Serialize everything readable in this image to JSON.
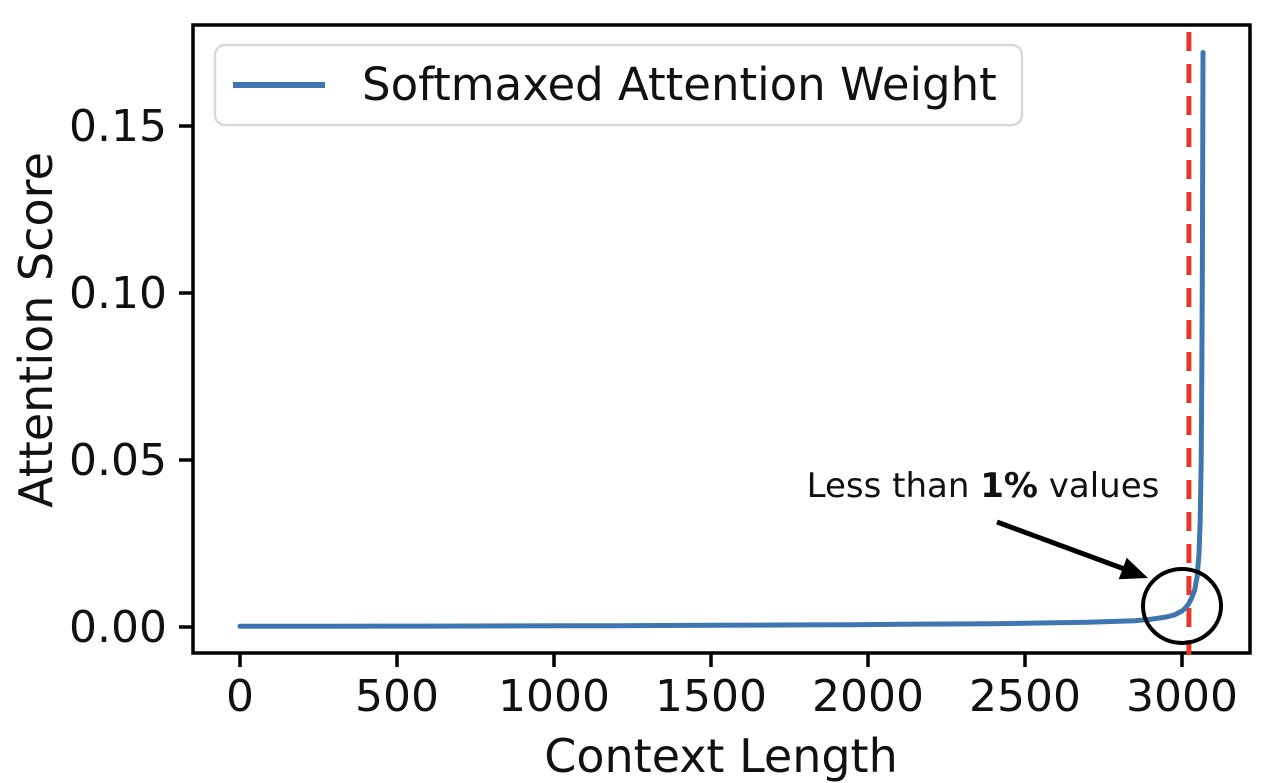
{
  "chart_data": {
    "type": "line",
    "title": "",
    "xlabel": "Context Length",
    "ylabel": "Attention Score",
    "grid": false,
    "xlim": [
      -150,
      3215
    ],
    "ylim": [
      -0.0085,
      0.1805
    ],
    "x_ticks": [
      0,
      500,
      1000,
      1500,
      2000,
      2500,
      3000
    ],
    "y_ticks": [
      {
        "value": 0.0,
        "label": "0.00"
      },
      {
        "value": 0.05,
        "label": "0.05"
      },
      {
        "value": 0.1,
        "label": "0.10"
      },
      {
        "value": 0.15,
        "label": "0.15"
      }
    ],
    "legend": {
      "position": "upper-left",
      "entries": [
        {
          "label": "Softmaxed Attention Weight",
          "color": "#3f76af"
        }
      ]
    },
    "series": [
      {
        "name": "Softmaxed Attention Weight",
        "color": "#3f76af",
        "x": [
          0,
          150,
          300,
          450,
          600,
          750,
          900,
          1050,
          1200,
          1350,
          1500,
          1650,
          1800,
          1950,
          2100,
          2250,
          2400,
          2550,
          2700,
          2800,
          2850,
          2900,
          2950,
          2975,
          3000,
          3010,
          3020,
          3030,
          3040,
          3048,
          3054,
          3058,
          3061,
          3063,
          3065,
          3066,
          3067
        ],
        "y": [
          0.0002,
          0.00022,
          0.00024,
          0.00026,
          0.00028,
          0.0003,
          0.00033,
          0.00036,
          0.0004,
          0.00045,
          0.0005,
          0.00056,
          0.00063,
          0.0007,
          0.0008,
          0.0009,
          0.001,
          0.0012,
          0.0014,
          0.0017,
          0.0019,
          0.0023,
          0.003,
          0.0036,
          0.0048,
          0.0056,
          0.0068,
          0.0085,
          0.011,
          0.015,
          0.022,
          0.032,
          0.05,
          0.075,
          0.11,
          0.14,
          0.172
        ]
      }
    ],
    "vline": {
      "x": 3022,
      "color": "#e8362a",
      "style": "dashed"
    },
    "annotation": {
      "prefix": "Less than ",
      "bold": "1%",
      "suffix": " values",
      "circle": {
        "x": 3000,
        "y": 0.0063
      }
    }
  },
  "colors": {
    "line": "#3f76af",
    "vline": "#e8362a",
    "spine": "#000000",
    "text": "#111111",
    "legend_border": "#d9d9d9",
    "legend_bg": "#ffffff"
  }
}
